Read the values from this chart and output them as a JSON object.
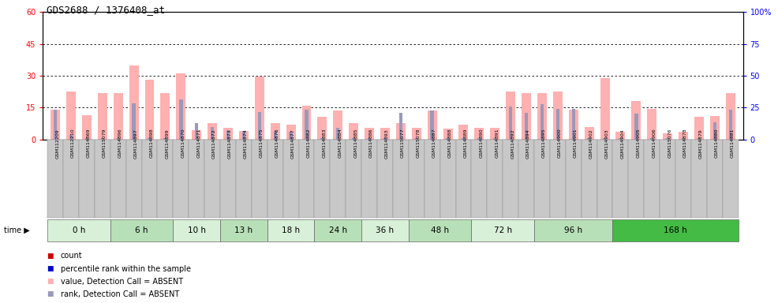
{
  "title": "GDS2688 / 1376408_at",
  "samples": [
    "GSM112209",
    "GSM112210",
    "GSM114869",
    "GSM115079",
    "GSM114896",
    "GSM114897",
    "GSM114898",
    "GSM114899",
    "GSM114870",
    "GSM114871",
    "GSM114872",
    "GSM114873",
    "GSM114874",
    "GSM114875",
    "GSM114876",
    "GSM114877",
    "GSM114882",
    "GSM114883",
    "GSM114884",
    "GSM114885",
    "GSM114886",
    "GSM114893",
    "GSM115077",
    "GSM115078",
    "GSM114887",
    "GSM114888",
    "GSM114889",
    "GSM114890",
    "GSM114891",
    "GSM114892",
    "GSM114894",
    "GSM114895",
    "GSM114900",
    "GSM114901",
    "GSM114902",
    "GSM114903",
    "GSM114904",
    "GSM114905",
    "GSM114906",
    "GSM115076",
    "GSM114878",
    "GSM114879",
    "GSM114880",
    "GSM114881"
  ],
  "time_groups": [
    {
      "label": "0 h",
      "start": 0,
      "end": 4,
      "color": "#d8f0d8"
    },
    {
      "label": "6 h",
      "start": 4,
      "end": 8,
      "color": "#b8e0b8"
    },
    {
      "label": "10 h",
      "start": 8,
      "end": 11,
      "color": "#d8f0d8"
    },
    {
      "label": "13 h",
      "start": 11,
      "end": 14,
      "color": "#b8e0b8"
    },
    {
      "label": "18 h",
      "start": 14,
      "end": 17,
      "color": "#d8f0d8"
    },
    {
      "label": "24 h",
      "start": 17,
      "end": 20,
      "color": "#b8e0b8"
    },
    {
      "label": "36 h",
      "start": 20,
      "end": 23,
      "color": "#d8f0d8"
    },
    {
      "label": "48 h",
      "start": 23,
      "end": 27,
      "color": "#b8e0b8"
    },
    {
      "label": "72 h",
      "start": 27,
      "end": 31,
      "color": "#d8f0d8"
    },
    {
      "label": "96 h",
      "start": 31,
      "end": 36,
      "color": "#b8e0b8"
    },
    {
      "label": "168 h",
      "start": 36,
      "end": 44,
      "color": "#44bb44"
    }
  ],
  "pink_bars": [
    14.0,
    22.5,
    11.5,
    22.0,
    22.0,
    35.0,
    28.0,
    22.0,
    31.0,
    4.5,
    7.5,
    5.5,
    4.0,
    29.5,
    7.5,
    7.0,
    16.0,
    10.5,
    13.5,
    7.5,
    5.5,
    5.5,
    7.5,
    5.5,
    13.5,
    5.0,
    7.0,
    5.5,
    5.5,
    22.5,
    22.0,
    22.0,
    22.5,
    14.0,
    6.0,
    29.0,
    3.5,
    18.0,
    14.5,
    3.0,
    3.5,
    10.5,
    11.0,
    22.0
  ],
  "blue_bars": [
    14.0,
    2.0,
    0.5,
    0.5,
    0.5,
    17.0,
    0.5,
    0.5,
    19.0,
    7.5,
    6.0,
    4.5,
    4.0,
    13.0,
    4.0,
    3.5,
    14.0,
    0.5,
    5.5,
    0.5,
    0.5,
    0.5,
    12.5,
    0.5,
    13.5,
    0.5,
    0.5,
    0.5,
    0.5,
    15.5,
    12.5,
    16.5,
    14.5,
    14.5,
    0.5,
    0.5,
    0.5,
    12.0,
    0.5,
    0.5,
    0.5,
    0.5,
    8.0,
    14.0
  ],
  "ylim_left": [
    0,
    60
  ],
  "ylim_right": [
    0,
    100
  ],
  "yticks_left": [
    0,
    15,
    30,
    45,
    60
  ],
  "yticks_right": [
    0,
    25,
    50,
    75,
    100
  ],
  "ytick_labels_left": [
    "0",
    "15",
    "30",
    "45",
    "60"
  ],
  "ytick_labels_right": [
    "0",
    "25",
    "50",
    "75",
    "100%"
  ],
  "plot_bg_color": "#ffffff",
  "label_bg_color": "#c8c8c8",
  "pink_color": "#ffb0b0",
  "blue_color": "#9999bb",
  "legend_items": [
    {
      "color": "#cc0000",
      "label": "count"
    },
    {
      "color": "#0000cc",
      "label": "percentile rank within the sample"
    },
    {
      "color": "#ffb0b0",
      "label": "value, Detection Call = ABSENT"
    },
    {
      "color": "#9999bb",
      "label": "rank, Detection Call = ABSENT"
    }
  ]
}
